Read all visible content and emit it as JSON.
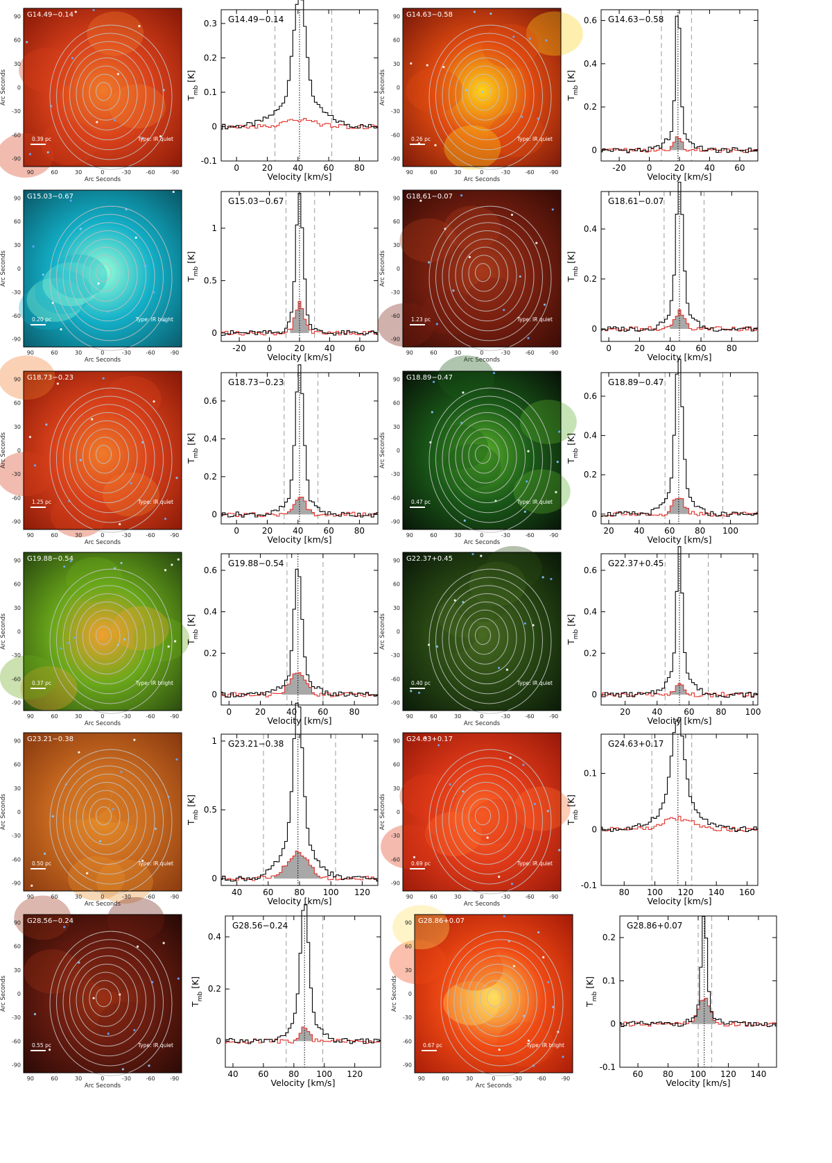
{
  "common": {
    "img_ylabel": "Arc Seconds",
    "img_xlabel": "Arc Seconds",
    "img_ticks": [
      90,
      60,
      30,
      0,
      -30,
      -60,
      -90
    ],
    "spec_ylabel_main": "T",
    "spec_ylabel_sub": "mb",
    "spec_ylabel_unit": "[K]",
    "spec_xlabel": "Velocity [km/s]"
  },
  "sources": [
    {
      "name": "G14.49−0.14",
      "scale": "0.39  pc",
      "type": "Type:  IR quiet",
      "palette": "red",
      "spectrum": {
        "xlim": [
          -10,
          92
        ],
        "ylim": [
          -0.1,
          0.34
        ],
        "xticks": [
          0,
          20,
          40,
          60,
          80
        ],
        "yticks": [
          -0.1,
          0,
          0.1,
          0.2,
          0.3
        ],
        "vsys": 41,
        "vlo": 25,
        "vhi": 62,
        "peak": 0.31,
        "width": 4,
        "wing": 0.08,
        "wing_w": 14,
        "thin": 0.02,
        "thin_w": 10,
        "shade": false
      }
    },
    {
      "name": "G14.63−0.58",
      "scale": "0.26  pc",
      "type": "Type:  IR quiet",
      "palette": "redyellow",
      "spectrum": {
        "xlim": [
          -32,
          72
        ],
        "ylim": [
          -0.05,
          0.65
        ],
        "xticks": [
          -20,
          0,
          20,
          40,
          60
        ],
        "yticks": [
          0,
          0.2,
          0.4,
          0.6
        ],
        "vsys": 19,
        "vlo": 8,
        "vhi": 28,
        "peak": 0.6,
        "width": 1.6,
        "wing": 0.08,
        "wing_w": 7,
        "thin": 0.07,
        "thin_w": 2.5,
        "shade": true
      }
    },
    {
      "name": "G15.03−0.67",
      "scale": "0.20  pc",
      "type": "Type:  IR bright",
      "palette": "cyan",
      "spectrum": {
        "xlim": [
          -32,
          72
        ],
        "ylim": [
          -0.08,
          1.35
        ],
        "xticks": [
          -20,
          0,
          20,
          40,
          60
        ],
        "yticks": [
          0,
          0.5,
          1
        ],
        "vsys": 20,
        "vlo": 11,
        "vhi": 30,
        "peak": 1.17,
        "width": 2.4,
        "wing": 0.15,
        "wing_w": 6,
        "thin": 0.28,
        "thin_w": 3,
        "shade": true
      }
    },
    {
      "name": "G18.61−0.07",
      "scale": "1.23  pc",
      "type": "Type:  IR quiet",
      "palette": "darkred",
      "spectrum": {
        "xlim": [
          -5,
          97
        ],
        "ylim": [
          -0.05,
          0.55
        ],
        "xticks": [
          0,
          20,
          40,
          60,
          80
        ],
        "yticks": [
          0,
          0.2,
          0.4
        ],
        "vsys": 46,
        "vlo": 36,
        "vhi": 62,
        "peak": 0.49,
        "width": 2.2,
        "wing": 0.1,
        "wing_w": 7,
        "thin": 0.07,
        "thin_w": 3,
        "shade": true
      }
    },
    {
      "name": "G18.73−0.23",
      "scale": "1.25  pc",
      "type": "Type:  IR quiet",
      "palette": "red",
      "spectrum": {
        "xlim": [
          -10,
          92
        ],
        "ylim": [
          -0.05,
          0.75
        ],
        "xticks": [
          0,
          20,
          40,
          60,
          80
        ],
        "yticks": [
          0,
          0.2,
          0.4,
          0.6
        ],
        "vsys": 41,
        "vlo": 31,
        "vhi": 53,
        "peak": 0.69,
        "width": 2.6,
        "wing": 0.1,
        "wing_w": 8,
        "thin": 0.09,
        "thin_w": 4,
        "shade": true
      }
    },
    {
      "name": "G18.89−0.47",
      "scale": "0.47  pc",
      "type": "Type:  IR quiet",
      "palette": "green",
      "spectrum": {
        "xlim": [
          15,
          118
        ],
        "ylim": [
          -0.05,
          0.72
        ],
        "xticks": [
          20,
          40,
          60,
          80,
          100
        ],
        "yticks": [
          0,
          0.2,
          0.4,
          0.6
        ],
        "vsys": 66,
        "vlo": 57,
        "vhi": 95,
        "peak": 0.67,
        "width": 2.4,
        "wing": 0.12,
        "wing_w": 8,
        "thin": 0.09,
        "thin_w": 3.5,
        "shade": true
      }
    },
    {
      "name": "G19.88−0.54",
      "scale": "0.37  pc",
      "type": "Type:  IR bright",
      "palette": "greenbright",
      "spectrum": {
        "xlim": [
          -5,
          95
        ],
        "ylim": [
          -0.05,
          0.68
        ],
        "xticks": [
          0,
          20,
          40,
          60,
          80
        ],
        "yticks": [
          0,
          0.2,
          0.4,
          0.6
        ],
        "vsys": 44,
        "vlo": 37,
        "vhi": 60,
        "peak": 0.52,
        "width": 2.4,
        "wing": 0.1,
        "wing_w": 8,
        "thin": 0.11,
        "thin_w": 5,
        "shade": true
      }
    },
    {
      "name": "G22.37+0.45",
      "scale": "0.40  pc",
      "type": "Type:  IR quiet",
      "palette": "darkgreen",
      "spectrum": {
        "xlim": [
          5,
          103
        ],
        "ylim": [
          -0.05,
          0.68
        ],
        "xticks": [
          20,
          40,
          60,
          80,
          100
        ],
        "yticks": [
          0,
          0.2,
          0.4,
          0.6
        ],
        "vsys": 54,
        "vlo": 45,
        "vhi": 72,
        "peak": 0.6,
        "width": 1.8,
        "wing": 0.12,
        "wing_w": 7,
        "thin": 0.06,
        "thin_w": 2.5,
        "shade": true
      }
    },
    {
      "name": "G23.21−0.38",
      "scale": "0.50  pc",
      "type": "Type:  IR quiet",
      "palette": "orange",
      "spectrum": {
        "xlim": [
          30,
          130
        ],
        "ylim": [
          -0.05,
          1.05
        ],
        "xticks": [
          40,
          60,
          80,
          100,
          120
        ],
        "yticks": [
          0,
          0.5,
          1
        ],
        "vsys": 79,
        "vlo": 57,
        "vhi": 103,
        "peak": 0.99,
        "width": 3,
        "wing": 0.3,
        "wing_w": 10,
        "thin": 0.19,
        "thin_w": 7,
        "shade": true
      }
    },
    {
      "name": "G24.63+0.17",
      "scale": "0.69  pc",
      "type": "Type:  IR quiet",
      "palette": "red2",
      "spectrum": {
        "xlim": [
          65,
          167
        ],
        "ylim": [
          -0.1,
          0.17
        ],
        "xticks": [
          80,
          100,
          120,
          140,
          160
        ],
        "yticks": [
          -0.1,
          0,
          0.1
        ],
        "vsys": 115,
        "vlo": 98,
        "vhi": 124,
        "peak": 0.15,
        "width": 4,
        "wing": 0.05,
        "wing_w": 12,
        "thin": 0.02,
        "thin_w": 10,
        "shade": false
      }
    },
    {
      "name": "G28.56−0.24",
      "scale": "0.55  pc",
      "type": "Type:  IR quiet",
      "palette": "darkred2",
      "spectrum": {
        "xlim": [
          35,
          137
        ],
        "ylim": [
          -0.1,
          0.48
        ],
        "xticks": [
          40,
          60,
          80,
          100,
          120
        ],
        "yticks": [
          0,
          0.2,
          0.4
        ],
        "vsys": 87,
        "vlo": 75,
        "vhi": 99,
        "peak": 0.44,
        "width": 2.6,
        "wing": 0.1,
        "wing_w": 8,
        "thin": 0.05,
        "thin_w": 3,
        "shade": true
      }
    },
    {
      "name": "G28.86+0.07",
      "scale": "0.67  pc",
      "type": "Type:  IR bright",
      "palette": "redbright",
      "spectrum": {
        "xlim": [
          48,
          152
        ],
        "ylim": [
          -0.1,
          0.25
        ],
        "xticks": [
          60,
          80,
          100,
          120,
          140
        ],
        "yticks": [
          -0.1,
          0,
          0.1,
          0.2
        ],
        "vsys": 104,
        "vlo": 100,
        "vhi": 109,
        "peak": 0.22,
        "width": 1.8,
        "wing": 0.03,
        "wing_w": 6,
        "thin": 0.06,
        "thin_w": 3.5,
        "shade": true
      }
    }
  ],
  "chart_data": [
    {
      "type": "line",
      "title": "G14.49−0.14",
      "xlabel": "Velocity [km/s]",
      "ylabel": "Tmb [K]",
      "xlim": [
        -10,
        92
      ],
      "ylim": [
        -0.1,
        0.34
      ],
      "series": [
        {
          "name": "",
          "peak_x": 41,
          "peak_y": 0.31
        }
      ]
    },
    {
      "type": "line",
      "title": "G14.63−0.58",
      "xlabel": "Velocity [km/s]",
      "ylabel": "Tmb [K]",
      "xlim": [
        -32,
        72
      ],
      "ylim": [
        -0.05,
        0.65
      ],
      "series": [
        {
          "name": "",
          "peak_x": 19,
          "peak_y": 0.6
        }
      ]
    },
    {
      "type": "line",
      "title": "G15.03−0.67",
      "xlabel": "Velocity [km/s]",
      "ylabel": "Tmb [K]",
      "xlim": [
        -32,
        72
      ],
      "ylim": [
        -0.08,
        1.35
      ],
      "series": [
        {
          "name": "",
          "peak_x": 20,
          "peak_y": 1.17
        }
      ]
    },
    {
      "type": "line",
      "title": "G18.61−0.07",
      "xlabel": "Velocity [km/s]",
      "ylabel": "Tmb [K]",
      "xlim": [
        -5,
        97
      ],
      "ylim": [
        -0.05,
        0.55
      ],
      "series": [
        {
          "name": "",
          "peak_x": 46,
          "peak_y": 0.49
        }
      ]
    },
    {
      "type": "line",
      "title": "G18.73−0.23",
      "xlabel": "Velocity [km/s]",
      "ylabel": "Tmb [K]",
      "xlim": [
        -10,
        92
      ],
      "ylim": [
        -0.05,
        0.75
      ],
      "series": [
        {
          "name": "",
          "peak_x": 41,
          "peak_y": 0.69
        }
      ]
    },
    {
      "type": "line",
      "title": "G18.89−0.47",
      "xlabel": "Velocity [km/s]",
      "ylabel": "Tmb [K]",
      "xlim": [
        15,
        118
      ],
      "ylim": [
        -0.05,
        0.72
      ],
      "series": [
        {
          "name": "",
          "peak_x": 66,
          "peak_y": 0.67
        }
      ]
    },
    {
      "type": "line",
      "title": "G19.88−0.54",
      "xlabel": "Velocity [km/s]",
      "ylabel": "Tmb [K]",
      "xlim": [
        -5,
        95
      ],
      "ylim": [
        -0.05,
        0.68
      ],
      "series": [
        {
          "name": "",
          "peak_x": 44,
          "peak_y": 0.52
        }
      ]
    },
    {
      "type": "line",
      "title": "G22.37+0.45",
      "xlabel": "Velocity [km/s]",
      "ylabel": "Tmb [K]",
      "xlim": [
        5,
        103
      ],
      "ylim": [
        -0.05,
        0.68
      ],
      "series": [
        {
          "name": "",
          "peak_x": 54,
          "peak_y": 0.6
        }
      ]
    },
    {
      "type": "line",
      "title": "G23.21−0.38",
      "xlabel": "Velocity [km/s]",
      "ylabel": "Tmb [K]",
      "xlim": [
        30,
        130
      ],
      "ylim": [
        -0.05,
        1.05
      ],
      "series": [
        {
          "name": "",
          "peak_x": 79,
          "peak_y": 0.99
        }
      ]
    },
    {
      "type": "line",
      "title": "G24.63+0.17",
      "xlabel": "Velocity [km/s]",
      "ylabel": "Tmb [K]",
      "xlim": [
        65,
        167
      ],
      "ylim": [
        -0.1,
        0.17
      ],
      "series": [
        {
          "name": "",
          "peak_x": 115,
          "peak_y": 0.15
        }
      ]
    },
    {
      "type": "line",
      "title": "G28.56−0.24",
      "xlabel": "Velocity [km/s]",
      "ylabel": "Tmb [K]",
      "xlim": [
        35,
        137
      ],
      "ylim": [
        -0.1,
        0.48
      ],
      "series": [
        {
          "name": "",
          "peak_x": 87,
          "peak_y": 0.44
        }
      ]
    },
    {
      "type": "line",
      "title": "G28.86+0.07",
      "xlabel": "Velocity [km/s]",
      "ylabel": "Tmb [K]",
      "xlim": [
        48,
        152
      ],
      "ylim": [
        -0.1,
        0.25
      ],
      "series": [
        {
          "name": "",
          "peak_x": 104,
          "peak_y": 0.22
        }
      ]
    }
  ],
  "colors": {
    "spectrum_main": "#000000",
    "spectrum_thin": "#e0302a",
    "shade": "#a8a8a8",
    "guide": "#9a9a9a",
    "contour": "#c0c0c0"
  }
}
